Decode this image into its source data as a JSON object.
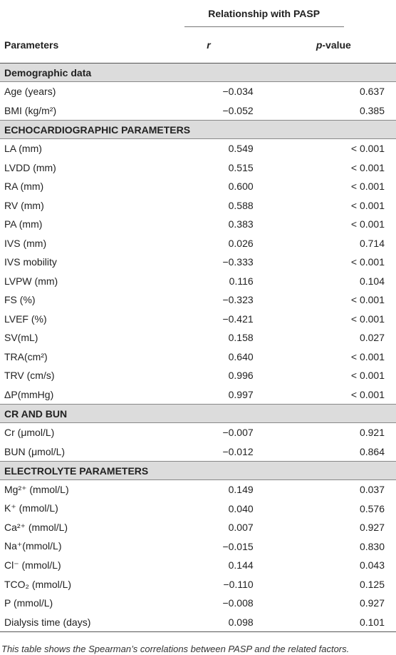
{
  "header": {
    "group": "Relationship with PASP",
    "columns": [
      "Parameters",
      "r",
      {
        "italic": "p",
        "text": "-value"
      }
    ]
  },
  "sections": [
    {
      "title": "Demographic data",
      "rows": [
        [
          "Age (years)",
          "−0.034",
          "0.637"
        ],
        [
          "BMI (kg/m²)",
          "−0.052",
          "0.385"
        ]
      ]
    },
    {
      "title": "ECHOCARDIOGRAPHIC PARAMETERS",
      "rows": [
        [
          "LA (mm)",
          "0.549",
          "< 0.001"
        ],
        [
          "LVDD (mm)",
          "0.515",
          "< 0.001"
        ],
        [
          "RA (mm)",
          "0.600",
          "< 0.001"
        ],
        [
          "RV (mm)",
          "0.588",
          "< 0.001"
        ],
        [
          "PA (mm)",
          "0.383",
          "< 0.001"
        ],
        [
          "IVS (mm)",
          "0.026",
          "0.714"
        ],
        [
          "IVS mobility",
          "−0.333",
          "< 0.001"
        ],
        [
          "LVPW (mm)",
          "0.116",
          "0.104"
        ],
        [
          "FS (%)",
          "−0.323",
          "< 0.001"
        ],
        [
          "LVEF (%)",
          "−0.421",
          "< 0.001"
        ],
        [
          "SV(mL)",
          "0.158",
          "0.027"
        ],
        [
          "TRA(cm²)",
          "0.640",
          "< 0.001"
        ],
        [
          "TRV (cm/s)",
          "0.996",
          "< 0.001"
        ],
        [
          "ΔP(mmHg)",
          "0.997",
          "< 0.001"
        ]
      ]
    },
    {
      "title": "CR AND BUN",
      "rows": [
        [
          "Cr (μmol/L)",
          "−0.007",
          "0.921"
        ],
        [
          "BUN (μmol/L)",
          "−0.012",
          "0.864"
        ]
      ]
    },
    {
      "title": "ELECTROLYTE PARAMETERS",
      "rows": [
        [
          "Mg²⁺ (mmol/L)",
          "0.149",
          "0.037"
        ],
        [
          "K⁺ (mmol/L)",
          "0.040",
          "0.576"
        ],
        [
          "Ca²⁺ (mmol/L)",
          "0.007",
          "0.927"
        ],
        [
          "Na⁺(mmol/L)",
          "−0.015",
          "0.830"
        ],
        [
          "Cl⁻ (mmol/L)",
          "0.144",
          "0.043"
        ],
        [
          "TCO₂ (mmol/L)",
          "−0.110",
          "0.125"
        ],
        [
          "P (mmol/L)",
          "−0.008",
          "0.927"
        ],
        [
          "Dialysis time (days)",
          "0.098",
          "0.101"
        ]
      ]
    }
  ],
  "caption": "This table shows the Spearman’s correlations between PASP and the related factors."
}
